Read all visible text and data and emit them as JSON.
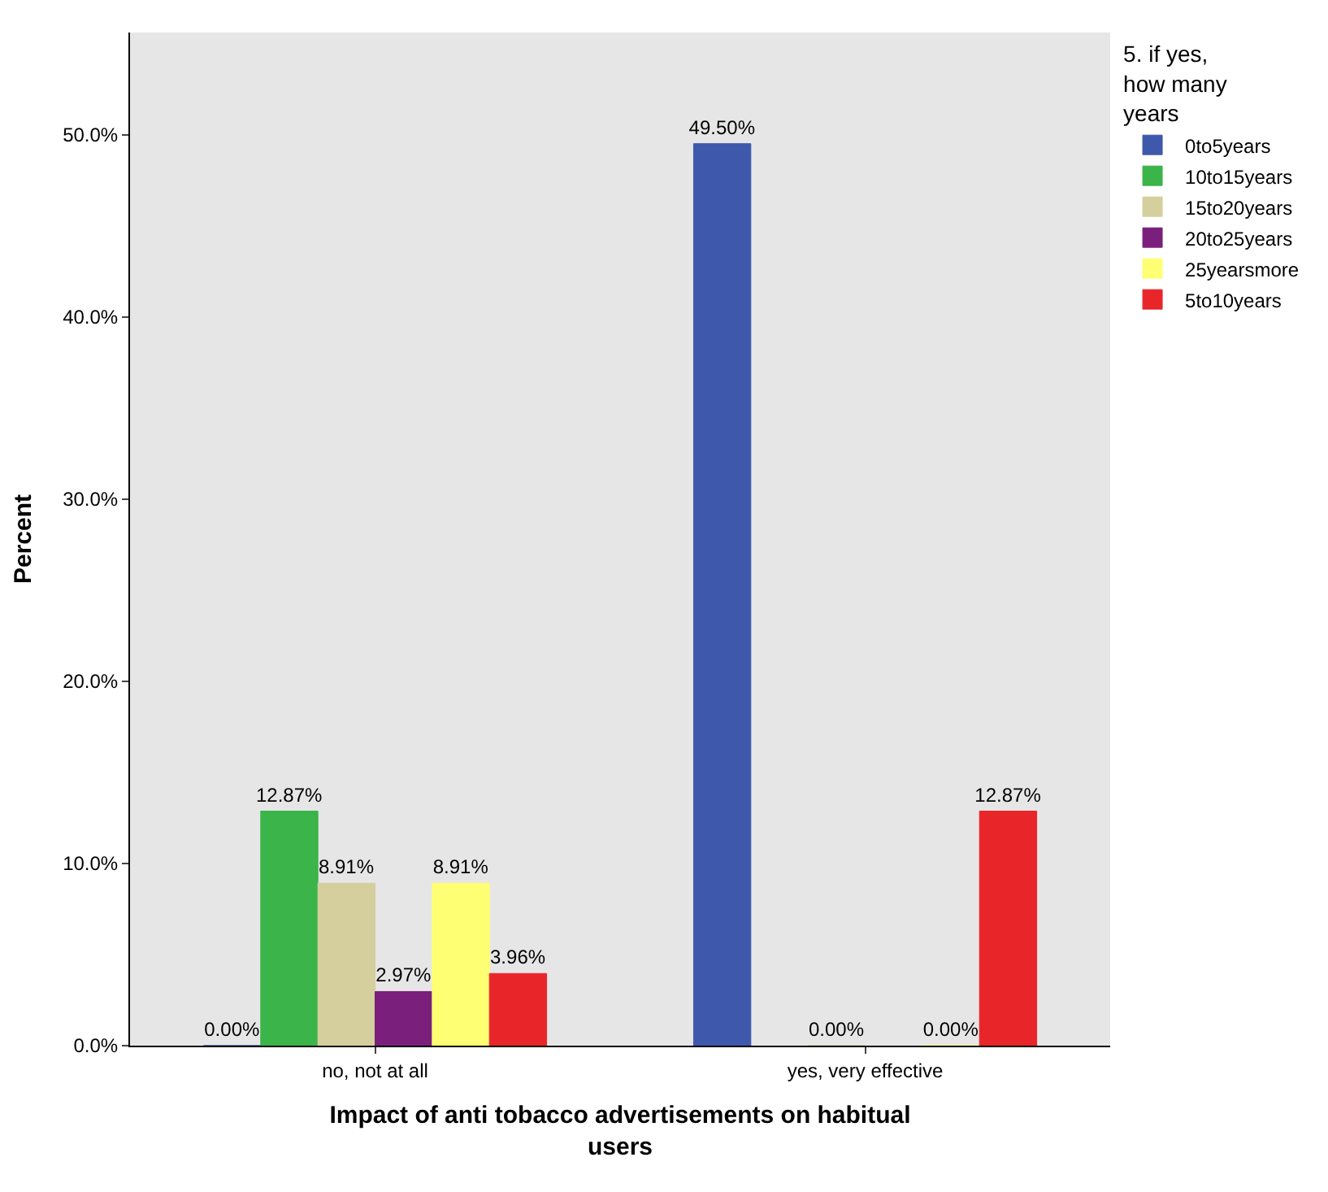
{
  "chart_data": {
    "type": "bar",
    "xlabel": "Impact of anti tobacco advertisements on habitual users",
    "ylabel": "Percent",
    "legend_title": "5. if yes, how many years",
    "categories": [
      "no, not at all",
      "yes, very effective"
    ],
    "series": [
      {
        "name": "0to5years",
        "color": "#3e58ac",
        "values": [
          0.0,
          49.5
        ],
        "value_labels": [
          "0.00%",
          "49.50%"
        ]
      },
      {
        "name": "10to15years",
        "color": "#3bb44a",
        "values": [
          12.87,
          null
        ],
        "value_labels": [
          "12.87%",
          null
        ]
      },
      {
        "name": "15to20years",
        "color": "#d4cf9c",
        "values": [
          8.91,
          0.0
        ],
        "value_labels": [
          "8.91%",
          "0.00%"
        ]
      },
      {
        "name": "20to25years",
        "color": "#7a1f7c",
        "values": [
          2.97,
          null
        ],
        "value_labels": [
          "2.97%",
          null
        ]
      },
      {
        "name": "25yearsmore",
        "color": "#ffff73",
        "values": [
          8.91,
          0.0
        ],
        "value_labels": [
          "8.91%",
          "0.00%"
        ]
      },
      {
        "name": "5to10years",
        "color": "#e8262a",
        "values": [
          3.96,
          12.87
        ],
        "value_labels": [
          "3.96%",
          "12.87%"
        ]
      }
    ],
    "ylim": [
      0,
      55.6
    ],
    "yticks": [
      {
        "value": 0,
        "label": "0.0%"
      },
      {
        "value": 10,
        "label": "10.0%"
      },
      {
        "value": 20,
        "label": "20.0%"
      },
      {
        "value": 30,
        "label": "30.0%"
      },
      {
        "value": 40,
        "label": "40.0%"
      },
      {
        "value": 50,
        "label": "50.0%"
      }
    ],
    "legend": "top right",
    "grid": false
  }
}
